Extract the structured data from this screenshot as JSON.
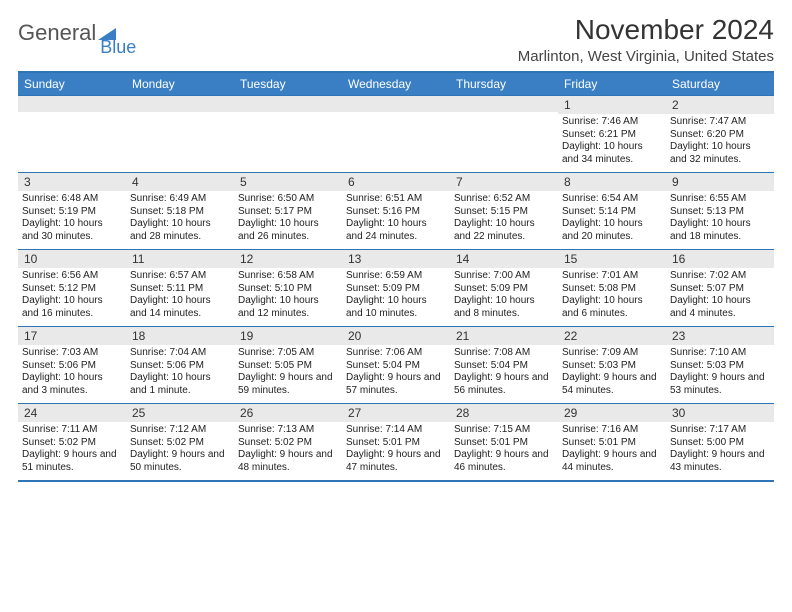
{
  "logo": {
    "word1": "General",
    "word2": "Blue"
  },
  "colors": {
    "brand": "#3a7fc4",
    "border": "#2f74b5",
    "row_bg": "#e9e9e9",
    "text": "#333333"
  },
  "title": "November 2024",
  "location": "Marlinton, West Virginia, United States",
  "day_headers": [
    "Sunday",
    "Monday",
    "Tuesday",
    "Wednesday",
    "Thursday",
    "Friday",
    "Saturday"
  ],
  "weeks": [
    [
      {
        "n": "",
        "sr": "",
        "ss": "",
        "dl": ""
      },
      {
        "n": "",
        "sr": "",
        "ss": "",
        "dl": ""
      },
      {
        "n": "",
        "sr": "",
        "ss": "",
        "dl": ""
      },
      {
        "n": "",
        "sr": "",
        "ss": "",
        "dl": ""
      },
      {
        "n": "",
        "sr": "",
        "ss": "",
        "dl": ""
      },
      {
        "n": "1",
        "sr": "Sunrise: 7:46 AM",
        "ss": "Sunset: 6:21 PM",
        "dl": "Daylight: 10 hours and 34 minutes."
      },
      {
        "n": "2",
        "sr": "Sunrise: 7:47 AM",
        "ss": "Sunset: 6:20 PM",
        "dl": "Daylight: 10 hours and 32 minutes."
      }
    ],
    [
      {
        "n": "3",
        "sr": "Sunrise: 6:48 AM",
        "ss": "Sunset: 5:19 PM",
        "dl": "Daylight: 10 hours and 30 minutes."
      },
      {
        "n": "4",
        "sr": "Sunrise: 6:49 AM",
        "ss": "Sunset: 5:18 PM",
        "dl": "Daylight: 10 hours and 28 minutes."
      },
      {
        "n": "5",
        "sr": "Sunrise: 6:50 AM",
        "ss": "Sunset: 5:17 PM",
        "dl": "Daylight: 10 hours and 26 minutes."
      },
      {
        "n": "6",
        "sr": "Sunrise: 6:51 AM",
        "ss": "Sunset: 5:16 PM",
        "dl": "Daylight: 10 hours and 24 minutes."
      },
      {
        "n": "7",
        "sr": "Sunrise: 6:52 AM",
        "ss": "Sunset: 5:15 PM",
        "dl": "Daylight: 10 hours and 22 minutes."
      },
      {
        "n": "8",
        "sr": "Sunrise: 6:54 AM",
        "ss": "Sunset: 5:14 PM",
        "dl": "Daylight: 10 hours and 20 minutes."
      },
      {
        "n": "9",
        "sr": "Sunrise: 6:55 AM",
        "ss": "Sunset: 5:13 PM",
        "dl": "Daylight: 10 hours and 18 minutes."
      }
    ],
    [
      {
        "n": "10",
        "sr": "Sunrise: 6:56 AM",
        "ss": "Sunset: 5:12 PM",
        "dl": "Daylight: 10 hours and 16 minutes."
      },
      {
        "n": "11",
        "sr": "Sunrise: 6:57 AM",
        "ss": "Sunset: 5:11 PM",
        "dl": "Daylight: 10 hours and 14 minutes."
      },
      {
        "n": "12",
        "sr": "Sunrise: 6:58 AM",
        "ss": "Sunset: 5:10 PM",
        "dl": "Daylight: 10 hours and 12 minutes."
      },
      {
        "n": "13",
        "sr": "Sunrise: 6:59 AM",
        "ss": "Sunset: 5:09 PM",
        "dl": "Daylight: 10 hours and 10 minutes."
      },
      {
        "n": "14",
        "sr": "Sunrise: 7:00 AM",
        "ss": "Sunset: 5:09 PM",
        "dl": "Daylight: 10 hours and 8 minutes."
      },
      {
        "n": "15",
        "sr": "Sunrise: 7:01 AM",
        "ss": "Sunset: 5:08 PM",
        "dl": "Daylight: 10 hours and 6 minutes."
      },
      {
        "n": "16",
        "sr": "Sunrise: 7:02 AM",
        "ss": "Sunset: 5:07 PM",
        "dl": "Daylight: 10 hours and 4 minutes."
      }
    ],
    [
      {
        "n": "17",
        "sr": "Sunrise: 7:03 AM",
        "ss": "Sunset: 5:06 PM",
        "dl": "Daylight: 10 hours and 3 minutes."
      },
      {
        "n": "18",
        "sr": "Sunrise: 7:04 AM",
        "ss": "Sunset: 5:06 PM",
        "dl": "Daylight: 10 hours and 1 minute."
      },
      {
        "n": "19",
        "sr": "Sunrise: 7:05 AM",
        "ss": "Sunset: 5:05 PM",
        "dl": "Daylight: 9 hours and 59 minutes."
      },
      {
        "n": "20",
        "sr": "Sunrise: 7:06 AM",
        "ss": "Sunset: 5:04 PM",
        "dl": "Daylight: 9 hours and 57 minutes."
      },
      {
        "n": "21",
        "sr": "Sunrise: 7:08 AM",
        "ss": "Sunset: 5:04 PM",
        "dl": "Daylight: 9 hours and 56 minutes."
      },
      {
        "n": "22",
        "sr": "Sunrise: 7:09 AM",
        "ss": "Sunset: 5:03 PM",
        "dl": "Daylight: 9 hours and 54 minutes."
      },
      {
        "n": "23",
        "sr": "Sunrise: 7:10 AM",
        "ss": "Sunset: 5:03 PM",
        "dl": "Daylight: 9 hours and 53 minutes."
      }
    ],
    [
      {
        "n": "24",
        "sr": "Sunrise: 7:11 AM",
        "ss": "Sunset: 5:02 PM",
        "dl": "Daylight: 9 hours and 51 minutes."
      },
      {
        "n": "25",
        "sr": "Sunrise: 7:12 AM",
        "ss": "Sunset: 5:02 PM",
        "dl": "Daylight: 9 hours and 50 minutes."
      },
      {
        "n": "26",
        "sr": "Sunrise: 7:13 AM",
        "ss": "Sunset: 5:02 PM",
        "dl": "Daylight: 9 hours and 48 minutes."
      },
      {
        "n": "27",
        "sr": "Sunrise: 7:14 AM",
        "ss": "Sunset: 5:01 PM",
        "dl": "Daylight: 9 hours and 47 minutes."
      },
      {
        "n": "28",
        "sr": "Sunrise: 7:15 AM",
        "ss": "Sunset: 5:01 PM",
        "dl": "Daylight: 9 hours and 46 minutes."
      },
      {
        "n": "29",
        "sr": "Sunrise: 7:16 AM",
        "ss": "Sunset: 5:01 PM",
        "dl": "Daylight: 9 hours and 44 minutes."
      },
      {
        "n": "30",
        "sr": "Sunrise: 7:17 AM",
        "ss": "Sunset: 5:00 PM",
        "dl": "Daylight: 9 hours and 43 minutes."
      }
    ]
  ]
}
